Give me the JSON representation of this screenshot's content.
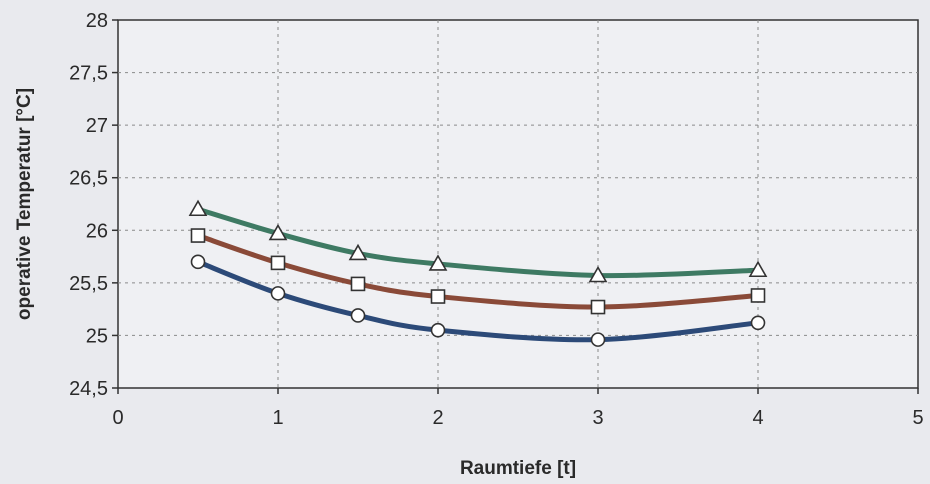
{
  "chart_data": {
    "type": "line",
    "title": "",
    "xlabel": "Raumtiefe [t]",
    "ylabel": "operative Temperatur [°C]",
    "xlim": [
      0,
      5
    ],
    "ylim": [
      24.5,
      28
    ],
    "x_ticks": [
      0,
      1,
      2,
      3,
      4,
      5
    ],
    "x_tick_labels": [
      "0",
      "1",
      "2",
      "3",
      "4",
      "5"
    ],
    "y_ticks": [
      24.5,
      25,
      25.5,
      26,
      26.5,
      27,
      27.5,
      28
    ],
    "y_tick_labels": [
      "24,5",
      "25",
      "25,5",
      "26",
      "26,5",
      "27",
      "27,5",
      "28"
    ],
    "grid": true,
    "legend": "none",
    "series": [
      {
        "marker": "triangle",
        "color": "#3e7a63",
        "x": [
          0.5,
          1,
          1.5,
          2,
          3,
          4
        ],
        "values": [
          26.2,
          25.97,
          25.78,
          25.68,
          25.57,
          25.62
        ]
      },
      {
        "marker": "square",
        "color": "#8a4a38",
        "x": [
          0.5,
          1,
          1.5,
          2,
          3,
          4
        ],
        "values": [
          25.95,
          25.69,
          25.49,
          25.37,
          25.27,
          25.38
        ]
      },
      {
        "marker": "circle",
        "color": "#2c4a78",
        "x": [
          0.5,
          1,
          1.5,
          2,
          3,
          4
        ],
        "values": [
          25.7,
          25.4,
          25.19,
          25.05,
          24.96,
          25.12
        ]
      }
    ]
  }
}
